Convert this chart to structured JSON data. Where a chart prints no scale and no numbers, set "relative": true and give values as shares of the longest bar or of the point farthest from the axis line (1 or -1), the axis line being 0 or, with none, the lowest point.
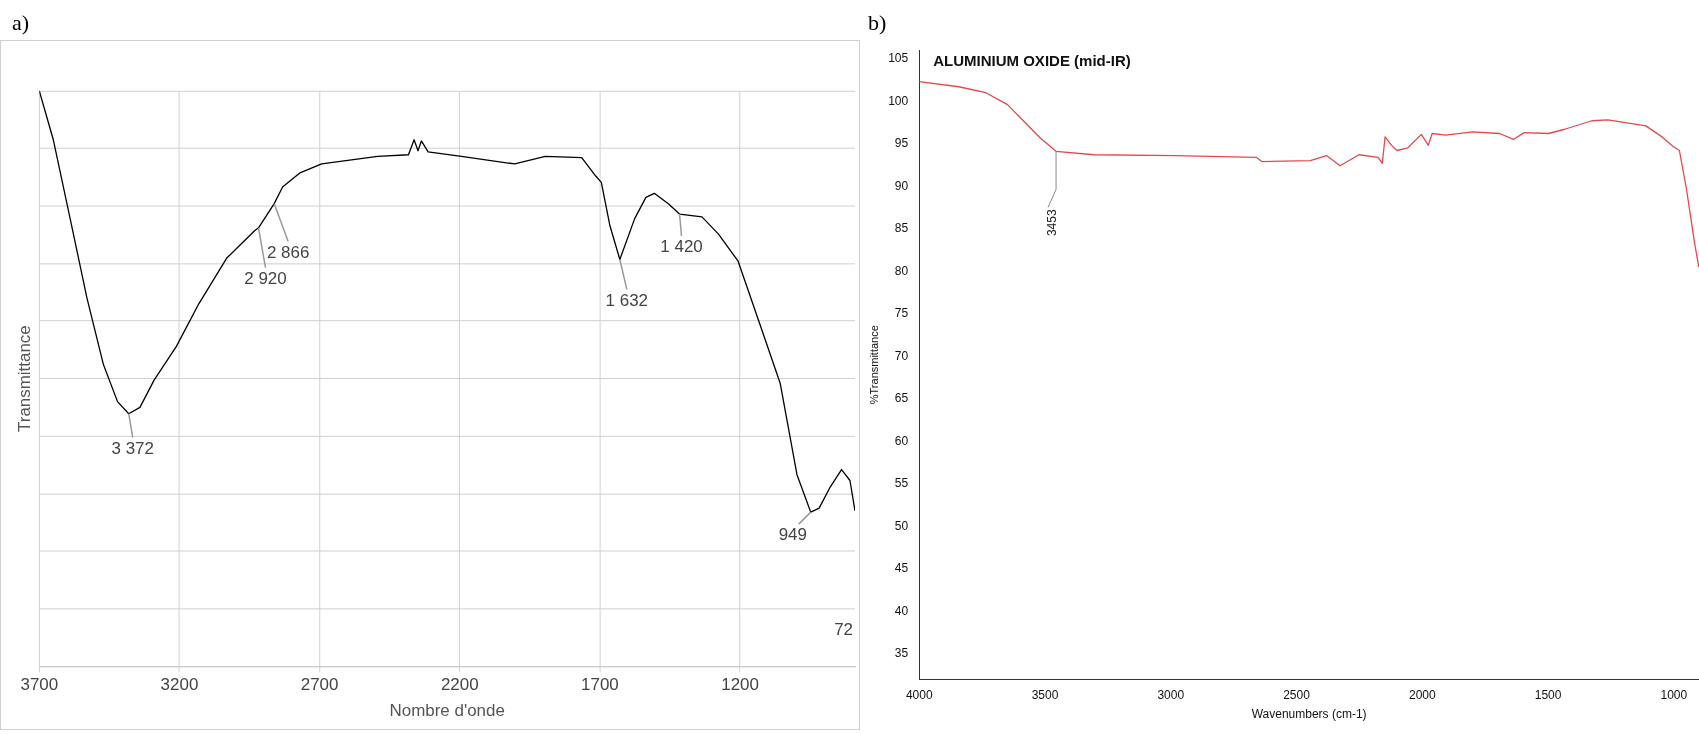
{
  "chart_data": [
    {
      "type": "line",
      "xlabel": "Nombre d'onde",
      "ylabel": "Transmittance",
      "relative": true,
      "grid": true,
      "xlim": [
        3700,
        790
      ],
      "xticks": [
        3700,
        3200,
        2700,
        2200,
        1700,
        1200
      ],
      "series": [
        {
          "color": "#000000",
          "x": [
            3700,
            3650,
            3590,
            3530,
            3471,
            3421,
            3381,
            3341,
            3291,
            3211,
            3131,
            3032,
            2932,
            2918,
            2862,
            2832,
            2772,
            2693,
            2493,
            2383,
            2363,
            2349,
            2337,
            2313,
            2194,
            2004,
            1895,
            1765,
            1715,
            1695,
            1665,
            1629,
            1576,
            1536,
            1506,
            1456,
            1416,
            1336,
            1277,
            1207,
            1117,
            1057,
            997,
            948,
            918,
            878,
            838,
            808,
            790
          ],
          "values": [
            1.0,
            0.915,
            0.778,
            0.64,
            0.524,
            0.46,
            0.439,
            0.45,
            0.497,
            0.556,
            0.63,
            0.709,
            0.757,
            0.762,
            0.804,
            0.833,
            0.857,
            0.873,
            0.886,
            0.889,
            0.915,
            0.896,
            0.913,
            0.894,
            0.886,
            0.873,
            0.886,
            0.884,
            0.852,
            0.841,
            0.767,
            0.707,
            0.778,
            0.815,
            0.822,
            0.804,
            0.786,
            0.781,
            0.751,
            0.704,
            0.577,
            0.492,
            0.333,
            0.268,
            0.275,
            0.312,
            0.342,
            0.323,
            0.27
          ]
        }
      ],
      "annotations": [
        "a)",
        {
          "text": "3 372",
          "x": 3381,
          "y": 0.439
        },
        {
          "text": "2 920",
          "x": 2918,
          "y": 0.762
        },
        {
          "text": "2 866",
          "x": 2862,
          "y": 0.804
        },
        {
          "text": "1 632",
          "x": 1629,
          "y": 0.707
        },
        {
          "text": "1 420",
          "x": 1416,
          "y": 0.786
        },
        {
          "text": "949",
          "x": 948,
          "y": 0.268
        },
        "72"
      ]
    },
    {
      "type": "line",
      "title": "ALUMINIUM OXIDE (mid-IR)",
      "xlabel": "Wavenumbers (cm-1)",
      "ylabel": "%Transmittance",
      "xlim": [
        4000,
        900
      ],
      "ylim": [
        32,
        106
      ],
      "xticks": [
        4000,
        3500,
        3000,
        2500,
        2000,
        1500,
        1000
      ],
      "yticks": [
        35,
        40,
        45,
        50,
        55,
        60,
        65,
        70,
        75,
        80,
        85,
        90,
        95,
        100,
        105
      ],
      "series": [
        {
          "color": "#e8474a",
          "x": [
            4000,
            3843,
            3735,
            3649,
            3520,
            3456,
            3305,
            2983,
            2660,
            2638,
            2445,
            2381,
            2327,
            2252,
            2176,
            2159,
            2148,
            2122,
            2101,
            2058,
            2004,
            1976,
            1961,
            1907,
            1800,
            1692,
            1638,
            1595,
            1498,
            1434,
            1326,
            1262,
            1111,
            1047,
            1004,
            978,
            950,
            918,
            901
          ],
          "values": [
            102.3,
            101.7,
            101.0,
            99.6,
            95.7,
            94.1,
            93.7,
            93.6,
            93.4,
            92.9,
            93.0,
            93.6,
            92.4,
            93.7,
            93.4,
            92.7,
            95.8,
            94.8,
            94.2,
            94.5,
            96.1,
            94.8,
            96.2,
            96.0,
            96.4,
            96.2,
            95.5,
            96.3,
            96.2,
            96.7,
            97.7,
            97.8,
            97.1,
            95.8,
            94.7,
            94.2,
            89.7,
            83.4,
            80.5
          ]
        }
      ],
      "annotations": [
        "b)",
        {
          "text": "3453",
          "x": 3456,
          "y": 94.1
        }
      ]
    }
  ]
}
